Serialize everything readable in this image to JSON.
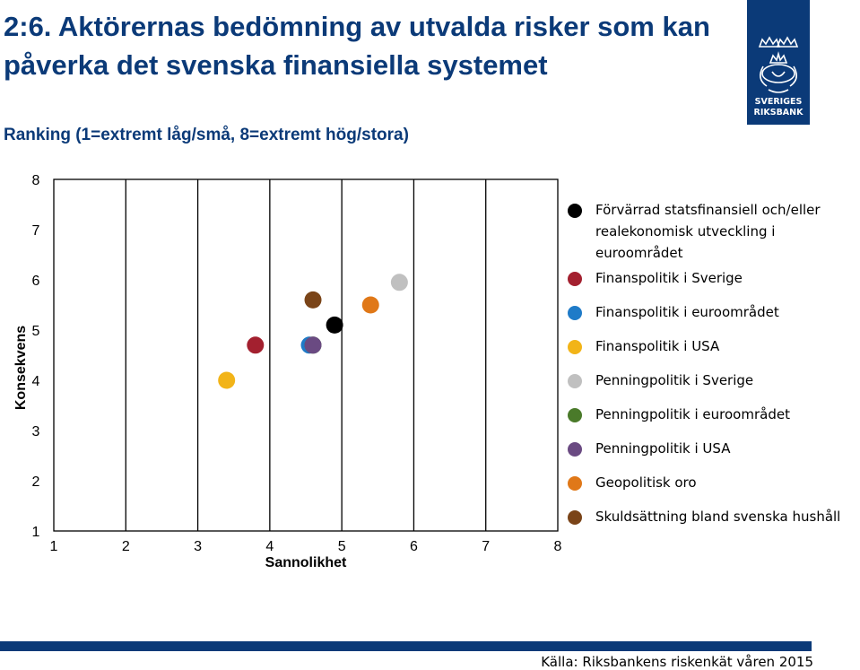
{
  "header": {
    "title": "2:6. Aktörernas bedömning av utvalda risker som kan påverka det svenska finansiella systemet",
    "subtitle": "Ranking (1=extremt låg/små, 8=extremt hög/stora)"
  },
  "logo": {
    "line1": "SVERIGES",
    "line2": "RIKSBANK"
  },
  "chart_data": {
    "type": "scatter",
    "xlabel": "Sannolikhet",
    "ylabel": "Konsekvens",
    "xlim": [
      1,
      8
    ],
    "ylim": [
      1,
      8
    ],
    "xticks": [
      "1",
      "2",
      "3",
      "4",
      "5",
      "6",
      "7",
      "8"
    ],
    "yticks": [
      "1",
      "2",
      "3",
      "4",
      "5",
      "6",
      "7",
      "8"
    ],
    "grid": "vertical",
    "legend_position": "right",
    "series": [
      {
        "name": "Förvärrad statsfinansiell och/eller realekonomisk utveckling i euroområdet",
        "color": "#000000",
        "x": 4.9,
        "y": 5.1
      },
      {
        "name": "Finanspolitik i Sverige",
        "color": "#a3202f",
        "x": 3.8,
        "y": 4.7
      },
      {
        "name": "Finanspolitik i euroområdet",
        "color": "#1f7bc8",
        "x": 4.55,
        "y": 4.7
      },
      {
        "name": "Finanspolitik i USA",
        "color": "#f2b418",
        "x": 3.4,
        "y": 4.0
      },
      {
        "name": "Penningpolitik i Sverige",
        "color": "#c0c0c0",
        "x": 5.8,
        "y": 5.95
      },
      {
        "name": "Penningpolitik i euroområdet",
        "color": "#4a7a2a",
        "x": 4.6,
        "y": 4.7
      },
      {
        "name": "Penningpolitik i USA",
        "color": "#6a4a82",
        "x": 4.6,
        "y": 4.7
      },
      {
        "name": "Geopolitisk oro",
        "color": "#e07818",
        "x": 5.4,
        "y": 5.5
      },
      {
        "name": "Skuldsättning bland svenska hushåll",
        "color": "#7a4418",
        "x": 4.6,
        "y": 5.6
      }
    ]
  },
  "legend": {
    "items": [
      {
        "label": "Förvärrad statsfinansiell och/eller\nrealekonomisk utveckling i\neuroområdet",
        "color": "#000000"
      },
      {
        "label": "Finanspolitik i Sverige",
        "color": "#a3202f"
      },
      {
        "label": "Finanspolitik i euroområdet",
        "color": "#1f7bc8"
      },
      {
        "label": "Finanspolitik i USA",
        "color": "#f2b418"
      },
      {
        "label": "Penningpolitik i Sverige",
        "color": "#c0c0c0"
      },
      {
        "label": "Penningpolitik i euroområdet",
        "color": "#4a7a2a"
      },
      {
        "label": "Penningpolitik i USA",
        "color": "#6a4a82"
      },
      {
        "label": "Geopolitisk oro",
        "color": "#e07818"
      },
      {
        "label": "Skuldsättning bland svenska hushåll",
        "color": "#7a4418"
      }
    ]
  },
  "footer": {
    "source": "Källa: Riksbankens riskenkät våren 2015",
    "bar_color": "#0b3a78"
  }
}
